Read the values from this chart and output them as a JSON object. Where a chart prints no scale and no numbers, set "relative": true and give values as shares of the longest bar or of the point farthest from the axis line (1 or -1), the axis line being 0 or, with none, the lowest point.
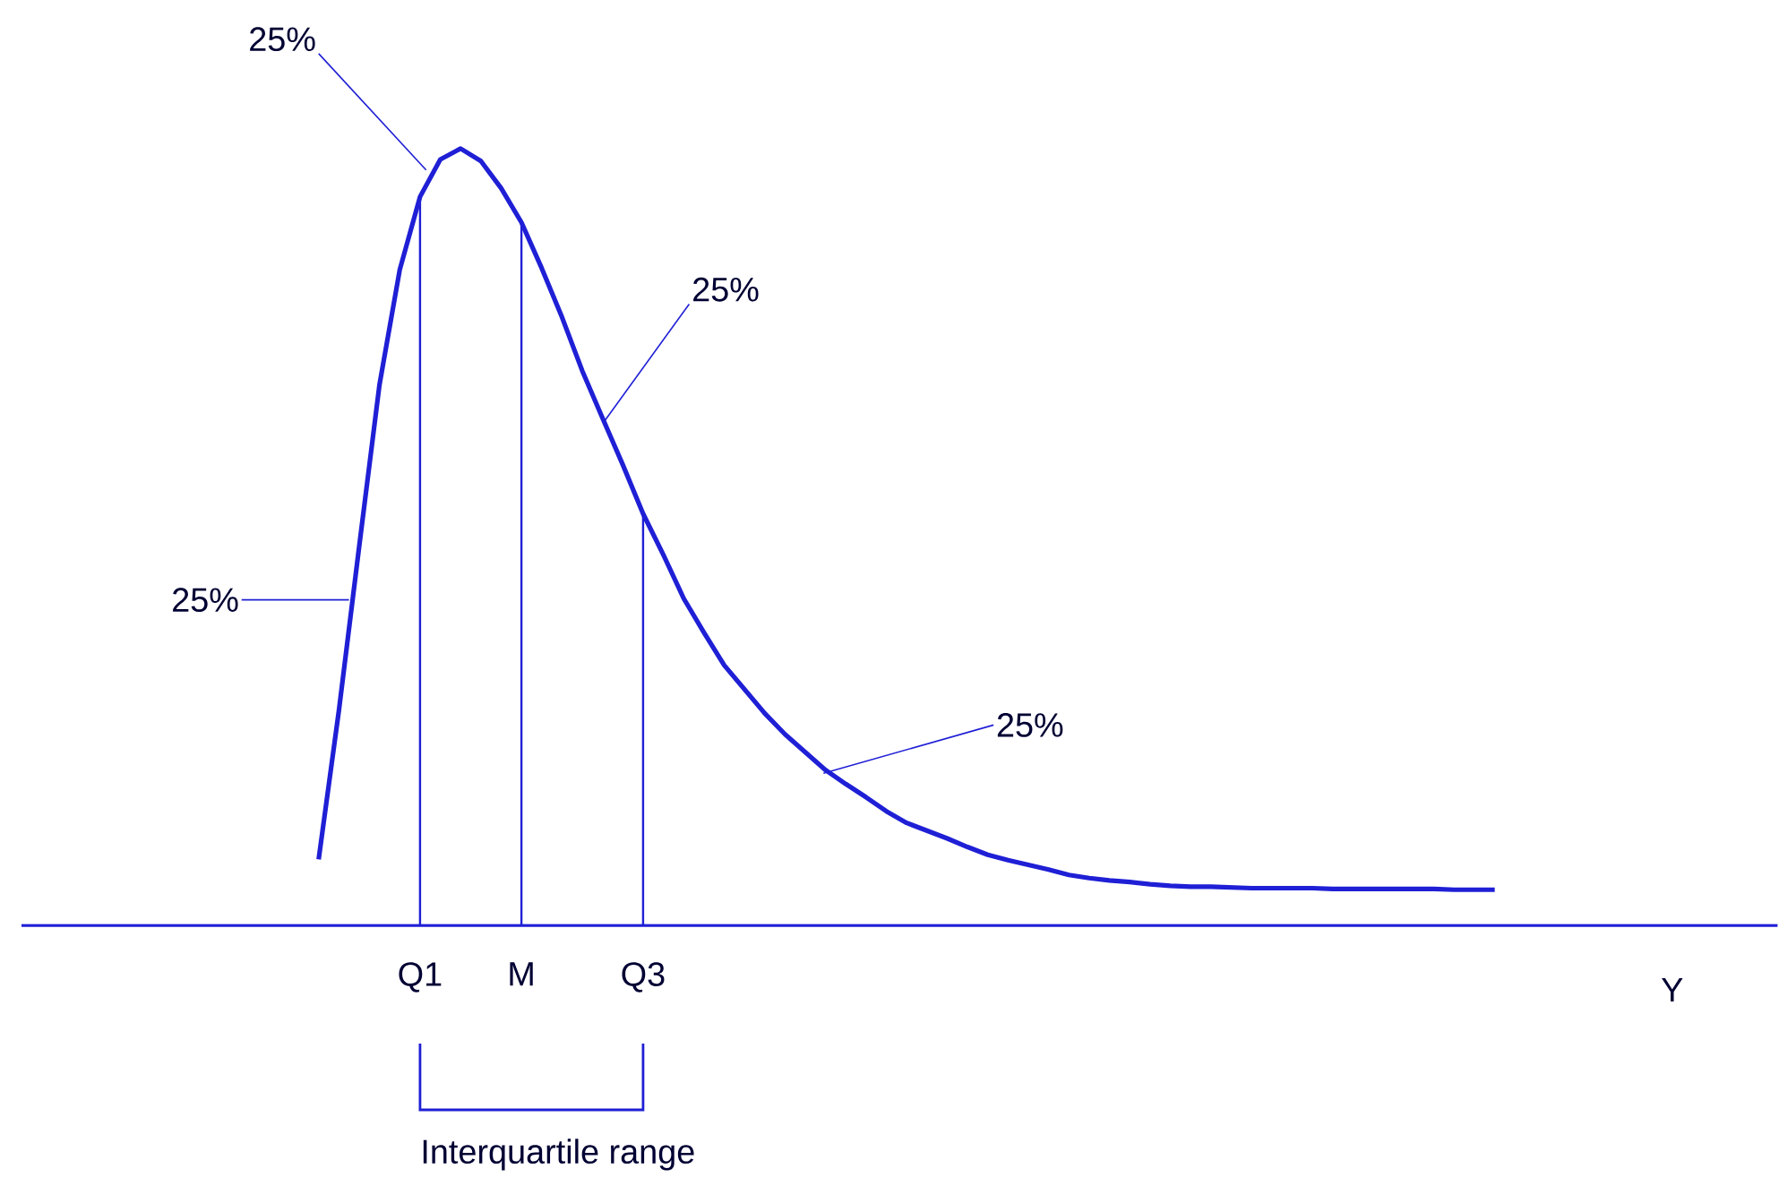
{
  "chart_data": {
    "type": "line",
    "relative": true,
    "xlabel": "Y",
    "tick_labels": "x",
    "color": "#1f1fd6",
    "categories": [
      null,
      null,
      null,
      null,
      null,
      "Q1",
      null,
      null,
      null,
      null,
      "M",
      null,
      null,
      null,
      null,
      null,
      "Q3",
      null,
      null,
      null,
      null,
      null,
      null,
      null,
      null,
      null,
      null,
      null,
      null,
      null,
      null,
      null,
      null,
      null,
      null,
      null,
      null,
      null,
      null,
      null,
      null,
      null,
      null,
      null,
      null,
      null,
      null,
      null,
      null,
      null,
      null,
      null,
      null,
      null,
      null,
      null,
      null,
      null,
      null
    ],
    "values": [
      0.085,
      0.277,
      0.488,
      0.696,
      0.844,
      0.938,
      0.986,
      1.0,
      0.984,
      0.949,
      0.905,
      0.846,
      0.783,
      0.714,
      0.653,
      0.593,
      0.53,
      0.477,
      0.421,
      0.377,
      0.335,
      0.304,
      0.273,
      0.246,
      0.223,
      0.2,
      0.182,
      0.165,
      0.147,
      0.132,
      0.122,
      0.112,
      0.101,
      0.091,
      0.084,
      0.078,
      0.072,
      0.065,
      0.061,
      0.058,
      0.056,
      0.053,
      0.051,
      0.05,
      0.05,
      0.049,
      0.048,
      0.048,
      0.048,
      0.048,
      0.047,
      0.047,
      0.047,
      0.047,
      0.047,
      0.047,
      0.046,
      0.046,
      0.046
    ],
    "ref_lines": [
      {
        "axis": "x",
        "value": "Q1"
      },
      {
        "axis": "x",
        "value": "M"
      },
      {
        "axis": "x",
        "value": "Q3"
      }
    ],
    "annotations": [
      "25%",
      "25%",
      "25%",
      "25%",
      "Interquartile range"
    ]
  }
}
